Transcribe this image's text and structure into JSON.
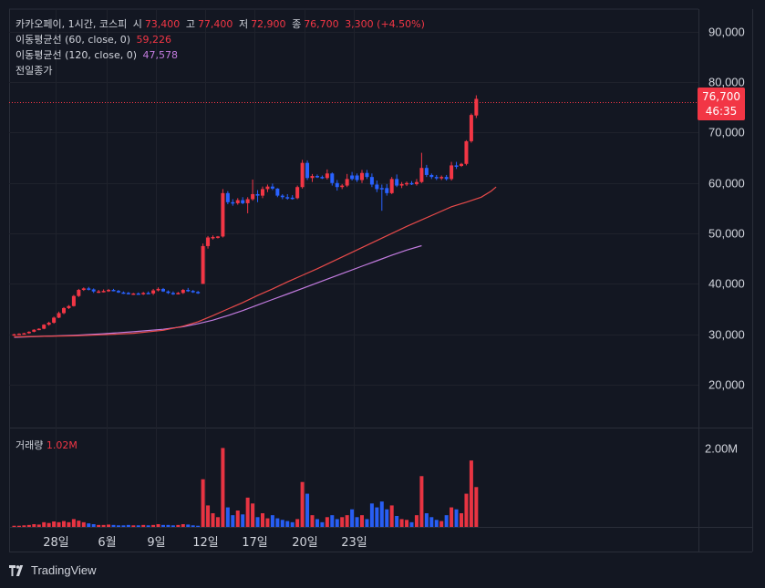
{
  "header": {
    "title": "카카오페이, 1시간, 코스피",
    "open_label": "시",
    "open": "73,400",
    "high_label": "고",
    "high": "77,400",
    "low_label": "저",
    "low": "72,900",
    "close_label": "종",
    "close": "76,700",
    "change": "3,300 (+4.50%)"
  },
  "indicators": {
    "ma60_label": "이동평균선 (60, close, 0)",
    "ma60_value": "59,226",
    "ma120_label": "이동평균선 (120, close, 0)",
    "ma120_value": "47,578",
    "prev_close_label": "전일종가"
  },
  "volume": {
    "label": "거래량",
    "value": "1.02M"
  },
  "price_badge": {
    "price": "76,700",
    "countdown": "46:35"
  },
  "brand": {
    "name": "TradingView"
  },
  "colors": {
    "up": "#f23645",
    "down": "#2962ff",
    "ma60": "#e84a4a",
    "ma120": "#c27bdf",
    "background": "#131722"
  },
  "chart_data": {
    "type": "candlestick",
    "y_axis_ticks": [
      "90,000",
      "80,000",
      "70,000",
      "60,000",
      "50,000",
      "40,000",
      "30,000",
      "20,000"
    ],
    "y_tick_values": [
      90000,
      80000,
      70000,
      60000,
      50000,
      40000,
      30000,
      20000
    ],
    "ylim": [
      11500,
      94500
    ],
    "volume_axis_ticks": [
      "2.00M"
    ],
    "volume_tick_values": [
      2000000
    ],
    "x_axis_ticks": [
      "28일",
      "6월",
      "9일",
      "12일",
      "17일",
      "20일",
      "23일"
    ],
    "x_tick_index": [
      8.4,
      18.7,
      28.5,
      38.4,
      48.4,
      58.4,
      68.4
    ],
    "prev_close_line": 76000,
    "candles": [
      [
        29800,
        30100,
        29700,
        30000,
        0.03,
        "u"
      ],
      [
        30000,
        30200,
        29900,
        30100,
        0.03,
        "u"
      ],
      [
        30100,
        30300,
        30000,
        30200,
        0.04,
        "u"
      ],
      [
        30200,
        30600,
        30100,
        30500,
        0.05,
        "u"
      ],
      [
        30500,
        31000,
        30400,
        30900,
        0.07,
        "u"
      ],
      [
        30900,
        31200,
        30800,
        31100,
        0.06,
        "u"
      ],
      [
        31100,
        32000,
        31000,
        31900,
        0.12,
        "u"
      ],
      [
        31900,
        32500,
        31700,
        32300,
        0.1,
        "u"
      ],
      [
        32300,
        33500,
        32100,
        33300,
        0.14,
        "u"
      ],
      [
        33300,
        34500,
        33200,
        34200,
        0.12,
        "u"
      ],
      [
        34200,
        35400,
        34000,
        35200,
        0.15,
        "u"
      ],
      [
        35200,
        35800,
        35000,
        35600,
        0.12,
        "u"
      ],
      [
        35600,
        37800,
        35500,
        37600,
        0.2,
        "u"
      ],
      [
        37600,
        39000,
        37400,
        38800,
        0.16,
        "u"
      ],
      [
        38800,
        39300,
        38600,
        39100,
        0.12,
        "u"
      ],
      [
        39100,
        39400,
        38700,
        38900,
        0.09,
        "d"
      ],
      [
        38900,
        39100,
        38200,
        38500,
        0.07,
        "d"
      ],
      [
        38500,
        38800,
        38200,
        38500,
        0.05,
        "u"
      ],
      [
        38500,
        38900,
        38300,
        38600,
        0.05,
        "u"
      ],
      [
        38600,
        39000,
        38400,
        38800,
        0.06,
        "u"
      ],
      [
        38800,
        39000,
        38500,
        38600,
        0.05,
        "d"
      ],
      [
        38600,
        38800,
        38200,
        38300,
        0.04,
        "d"
      ],
      [
        38300,
        38500,
        38000,
        38200,
        0.04,
        "d"
      ],
      [
        38200,
        38400,
        37900,
        38000,
        0.05,
        "d"
      ],
      [
        38000,
        38200,
        37800,
        38100,
        0.04,
        "u"
      ],
      [
        38100,
        38300,
        37900,
        38000,
        0.04,
        "d"
      ],
      [
        38000,
        38400,
        37800,
        38200,
        0.05,
        "u"
      ],
      [
        38200,
        38500,
        38000,
        38100,
        0.04,
        "d"
      ],
      [
        38100,
        39000,
        37800,
        38700,
        0.05,
        "u"
      ],
      [
        38700,
        39300,
        38500,
        39000,
        0.07,
        "u"
      ],
      [
        39000,
        39200,
        38400,
        38500,
        0.05,
        "d"
      ],
      [
        38500,
        38700,
        38000,
        38200,
        0.05,
        "d"
      ],
      [
        38200,
        38500,
        37800,
        38000,
        0.04,
        "d"
      ],
      [
        38000,
        38400,
        37900,
        38200,
        0.05,
        "u"
      ],
      [
        38200,
        39000,
        38000,
        38800,
        0.07,
        "u"
      ],
      [
        38800,
        39200,
        38400,
        38600,
        0.06,
        "d"
      ],
      [
        38600,
        38800,
        38200,
        38400,
        0.04,
        "d"
      ],
      [
        38400,
        38600,
        38000,
        38200,
        0.03,
        "d"
      ],
      [
        40000,
        48000,
        40000,
        47500,
        1.22,
        "u"
      ],
      [
        47500,
        49500,
        47000,
        49200,
        0.55,
        "u"
      ],
      [
        49200,
        49600,
        48800,
        49300,
        0.35,
        "u"
      ],
      [
        49300,
        49500,
        49000,
        49400,
        0.25,
        "u"
      ],
      [
        49400,
        58800,
        49200,
        58000,
        2.02,
        "u"
      ],
      [
        58000,
        58400,
        55800,
        56200,
        0.5,
        "d"
      ],
      [
        56200,
        56800,
        55500,
        56000,
        0.3,
        "d"
      ],
      [
        56000,
        57000,
        55700,
        56600,
        0.42,
        "u"
      ],
      [
        56600,
        57200,
        55800,
        56000,
        0.32,
        "d"
      ],
      [
        56000,
        57200,
        54000,
        56800,
        0.75,
        "u"
      ],
      [
        56800,
        60700,
        56500,
        57800,
        0.6,
        "u"
      ],
      [
        57800,
        58600,
        56200,
        57500,
        0.25,
        "d"
      ],
      [
        57500,
        59300,
        57000,
        58800,
        0.35,
        "u"
      ],
      [
        58800,
        59700,
        58200,
        59300,
        0.22,
        "u"
      ],
      [
        59300,
        59900,
        58600,
        58900,
        0.3,
        "d"
      ],
      [
        58900,
        59000,
        57200,
        57500,
        0.22,
        "d"
      ],
      [
        57500,
        57800,
        56800,
        57200,
        0.18,
        "d"
      ],
      [
        57200,
        57800,
        56700,
        57100,
        0.15,
        "d"
      ],
      [
        57100,
        57600,
        56700,
        57000,
        0.12,
        "d"
      ],
      [
        57000,
        59500,
        56800,
        59200,
        0.2,
        "u"
      ],
      [
        59200,
        64600,
        58900,
        64000,
        1.15,
        "u"
      ],
      [
        64000,
        64500,
        60600,
        61000,
        0.85,
        "d"
      ],
      [
        61000,
        61800,
        60200,
        61400,
        0.3,
        "u"
      ],
      [
        61400,
        61700,
        61000,
        61200,
        0.2,
        "d"
      ],
      [
        61200,
        61500,
        60800,
        61000,
        0.12,
        "d"
      ],
      [
        61000,
        62700,
        60700,
        61900,
        0.25,
        "u"
      ],
      [
        61900,
        62100,
        59500,
        60000,
        0.3,
        "d"
      ],
      [
        60000,
        60600,
        58500,
        59200,
        0.2,
        "d"
      ],
      [
        59200,
        59800,
        58800,
        59500,
        0.25,
        "u"
      ],
      [
        59500,
        61800,
        59200,
        60800,
        0.3,
        "u"
      ],
      [
        60800,
        62200,
        60500,
        61500,
        0.45,
        "d"
      ],
      [
        61500,
        61900,
        60200,
        60600,
        0.25,
        "d"
      ],
      [
        60600,
        62600,
        60000,
        62000,
        0.3,
        "u"
      ],
      [
        62000,
        62600,
        60800,
        61200,
        0.2,
        "d"
      ],
      [
        61200,
        61900,
        59200,
        59700,
        0.6,
        "d"
      ],
      [
        59700,
        60500,
        58200,
        58800,
        0.5,
        "d"
      ],
      [
        58800,
        59700,
        54500,
        59000,
        0.65,
        "d"
      ],
      [
        59000,
        59800,
        57500,
        58000,
        0.45,
        "d"
      ],
      [
        58000,
        61200,
        57800,
        60800,
        0.55,
        "u"
      ],
      [
        60800,
        61700,
        59200,
        59500,
        0.28,
        "d"
      ],
      [
        59500,
        60200,
        59000,
        59800,
        0.2,
        "u"
      ],
      [
        59800,
        60300,
        59400,
        60000,
        0.18,
        "u"
      ],
      [
        60000,
        60400,
        59600,
        59800,
        0.12,
        "d"
      ],
      [
        59800,
        60800,
        59500,
        60200,
        0.3,
        "u"
      ],
      [
        60200,
        66000,
        60000,
        63000,
        1.3,
        "u"
      ],
      [
        63000,
        63600,
        61200,
        61600,
        0.35,
        "d"
      ],
      [
        61600,
        61900,
        60800,
        61200,
        0.25,
        "d"
      ],
      [
        61200,
        61600,
        60600,
        61000,
        0.18,
        "d"
      ],
      [
        61000,
        61500,
        60600,
        61200,
        0.15,
        "u"
      ],
      [
        61200,
        61600,
        60500,
        60800,
        0.3,
        "d"
      ],
      [
        60800,
        64200,
        60500,
        63500,
        0.5,
        "u"
      ],
      [
        63500,
        64200,
        62800,
        63400,
        0.45,
        "d"
      ],
      [
        63400,
        64000,
        63200,
        63800,
        0.35,
        "u"
      ],
      [
        63800,
        68500,
        63500,
        68300,
        0.85,
        "u"
      ],
      [
        68300,
        73800,
        68000,
        73500,
        1.7,
        "u"
      ],
      [
        73400,
        77400,
        72900,
        76700,
        1.02,
        "u"
      ]
    ],
    "ma60": [
      29500,
      29600,
      29700,
      29900,
      30200,
      30800,
      31600,
      32500,
      33700,
      35000,
      36300,
      37700,
      39000,
      40400,
      41700,
      43000,
      44400,
      45800,
      47200,
      48600,
      50000,
      51400,
      52700,
      54000,
      55300,
      56200,
      57200,
      58400,
      59226
    ],
    "ma60_x_index": [
      0,
      6,
      12,
      18,
      24,
      30,
      34,
      37,
      40,
      43,
      46,
      49,
      52,
      55,
      58,
      61,
      64,
      67,
      70,
      73,
      76,
      79,
      82,
      85,
      88,
      91,
      94,
      96,
      97
    ],
    "ma120": [
      29400,
      29600,
      29800,
      30100,
      30500,
      31000,
      31500,
      32100,
      32800,
      33700,
      34700,
      35800,
      36900,
      38000,
      39100,
      40200,
      41300,
      42400,
      43500,
      44600,
      45700,
      46700,
      47578
    ],
    "ma120_x_index": [
      0,
      6,
      12,
      18,
      24,
      30,
      34,
      37,
      40,
      43,
      46,
      49,
      52,
      55,
      58,
      61,
      64,
      67,
      70,
      73,
      76,
      79,
      82
    ]
  }
}
